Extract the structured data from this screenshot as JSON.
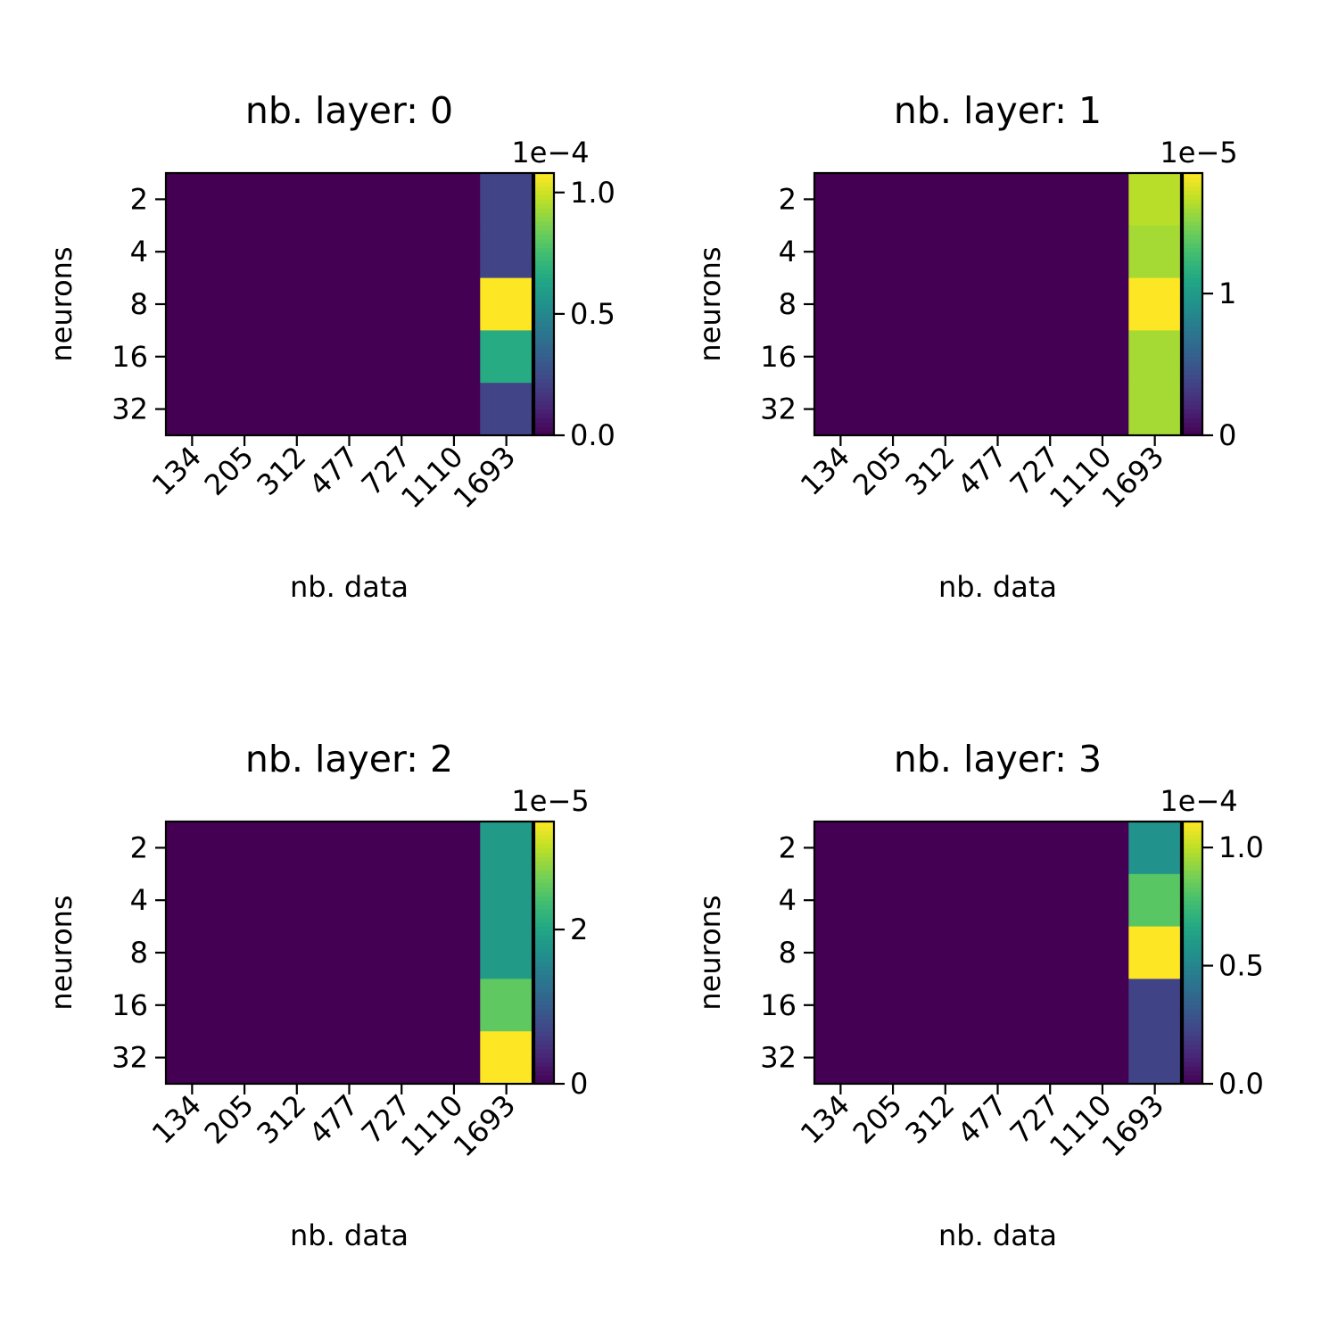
{
  "chart_data": [
    {
      "type": "heatmap",
      "title": "nb. layer: 0",
      "xlabel": "nb. data",
      "ylabel": "neurons",
      "x_categories": [
        "134",
        "205",
        "312",
        "477",
        "727",
        "1110",
        "1693"
      ],
      "y_categories": [
        "2",
        "4",
        "8",
        "16",
        "32"
      ],
      "values": [
        [
          0,
          0,
          0,
          0,
          0,
          0,
          2.2e-05
        ],
        [
          0,
          0,
          0,
          0,
          0,
          0,
          2.2e-05
        ],
        [
          0,
          0,
          0,
          0,
          0,
          0,
          0.000108
        ],
        [
          0,
          0,
          0,
          0,
          0,
          0,
          6.6e-05
        ],
        [
          0,
          0,
          0,
          0,
          0,
          0,
          2.2e-05
        ]
      ],
      "colorbar": {
        "vmin": 0,
        "vmax": 0.000108,
        "ticks": [
          0,
          0.5,
          1.0
        ],
        "tick_labels": [
          "0.0",
          "0.5",
          "1.0"
        ],
        "offset_text": "1e−4",
        "scale": 0.0001
      }
    },
    {
      "type": "heatmap",
      "title": "nb. layer: 1",
      "xlabel": "nb. data",
      "ylabel": "neurons",
      "x_categories": [
        "134",
        "205",
        "312",
        "477",
        "727",
        "1110",
        "1693"
      ],
      "y_categories": [
        "2",
        "4",
        "8",
        "16",
        "32"
      ],
      "values": [
        [
          0,
          0,
          0,
          0,
          0,
          0,
          1.65e-05
        ],
        [
          0,
          0,
          0,
          0,
          0,
          0,
          1.6e-05
        ],
        [
          0,
          0,
          0,
          0,
          0,
          0,
          1.85e-05
        ],
        [
          0,
          0,
          0,
          0,
          0,
          0,
          1.6e-05
        ],
        [
          0,
          0,
          0,
          0,
          0,
          0,
          1.6e-05
        ]
      ],
      "colorbar": {
        "vmin": 0,
        "vmax": 1.85e-05,
        "ticks": [
          0,
          1
        ],
        "tick_labels": [
          "0",
          "1"
        ],
        "offset_text": "1e−5",
        "scale": 1e-05
      }
    },
    {
      "type": "heatmap",
      "title": "nb. layer: 2",
      "xlabel": "nb. data",
      "ylabel": "neurons",
      "x_categories": [
        "134",
        "205",
        "312",
        "477",
        "727",
        "1110",
        "1693"
      ],
      "y_categories": [
        "2",
        "4",
        "8",
        "16",
        "32"
      ],
      "values": [
        [
          0,
          0,
          0,
          0,
          0,
          0,
          1.85e-05
        ],
        [
          0,
          0,
          0,
          0,
          0,
          0,
          1.85e-05
        ],
        [
          0,
          0,
          0,
          0,
          0,
          0,
          1.85e-05
        ],
        [
          0,
          0,
          0,
          0,
          0,
          0,
          2.55e-05
        ],
        [
          0,
          0,
          0,
          0,
          0,
          0,
          3.4e-05
        ]
      ],
      "colorbar": {
        "vmin": 0,
        "vmax": 3.4e-05,
        "ticks": [
          0,
          2
        ],
        "tick_labels": [
          "0",
          "2"
        ],
        "offset_text": "1e−5",
        "scale": 1e-05
      }
    },
    {
      "type": "heatmap",
      "title": "nb. layer: 3",
      "xlabel": "nb. data",
      "ylabel": "neurons",
      "x_categories": [
        "134",
        "205",
        "312",
        "477",
        "727",
        "1110",
        "1693"
      ],
      "y_categories": [
        "2",
        "4",
        "8",
        "16",
        "32"
      ],
      "values": [
        [
          0,
          0,
          0,
          0,
          0,
          0,
          5.6e-05
        ],
        [
          0,
          0,
          0,
          0,
          0,
          0,
          8.2e-05
        ],
        [
          0,
          0,
          0,
          0,
          0,
          0,
          0.000111
        ],
        [
          0,
          0,
          0,
          0,
          0,
          0,
          2.2e-05
        ],
        [
          0,
          0,
          0,
          0,
          0,
          0,
          2.2e-05
        ]
      ],
      "colorbar": {
        "vmin": 0,
        "vmax": 0.000111,
        "ticks": [
          0,
          0.5,
          1.0
        ],
        "tick_labels": [
          "0.0",
          "0.5",
          "1.0"
        ],
        "offset_text": "1e−4",
        "scale": 0.0001
      }
    }
  ]
}
